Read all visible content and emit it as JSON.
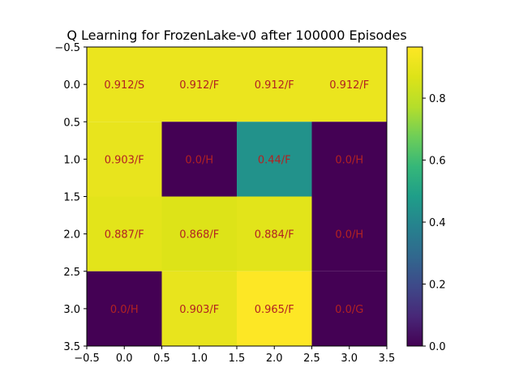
{
  "chart_data": {
    "type": "heatmap",
    "title": "Q Learning for FrozenLake-v0 after 100000 Episodes",
    "rows": 4,
    "cols": 4,
    "values": [
      [
        0.912,
        0.912,
        0.912,
        0.912
      ],
      [
        0.903,
        0.0,
        0.44,
        0.0
      ],
      [
        0.887,
        0.868,
        0.884,
        0.0
      ],
      [
        0.0,
        0.903,
        0.965,
        0.0
      ]
    ],
    "cell_labels": [
      [
        "0.912/S",
        "0.912/F",
        "0.912/F",
        "0.912/F"
      ],
      [
        "0.903/F",
        "0.0/H",
        "0.44/F",
        "0.0/H"
      ],
      [
        "0.887/F",
        "0.868/F",
        "0.884/F",
        "0.0/H"
      ],
      [
        "0.0/H",
        "0.903/F",
        "0.965/F",
        "0.0/G"
      ]
    ],
    "label_color": "#b22222",
    "colormap": "viridis",
    "xlim": [
      -0.5,
      3.5
    ],
    "ylim": [
      3.5,
      -0.5
    ],
    "x_ticks": [
      "−0.5",
      "0.0",
      "0.5",
      "1.0",
      "1.5",
      "2.0",
      "2.5",
      "3.0",
      "3.5"
    ],
    "y_ticks": [
      "−0.5",
      "0.0",
      "0.5",
      "1.0",
      "1.5",
      "2.0",
      "2.5",
      "3.0",
      "3.5"
    ],
    "colorbar": {
      "vmin": 0.0,
      "vmax": 0.965,
      "ticks": [
        "0.0",
        "0.2",
        "0.4",
        "0.6",
        "0.8"
      ]
    },
    "grid": false
  }
}
